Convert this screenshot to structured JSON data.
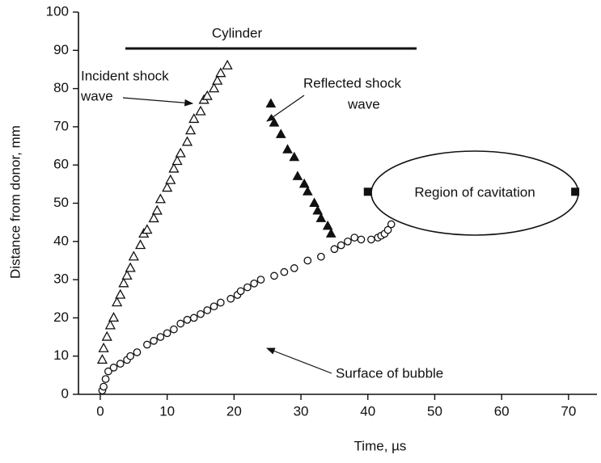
{
  "chart_data": {
    "type": "scatter",
    "x_label": "Time, µs",
    "y_label": "Distance from donor, mm",
    "xlim": [
      -3.26,
      74.25
    ],
    "ylim": [
      0,
      100
    ],
    "xticks": [
      0,
      10,
      20,
      30,
      40,
      50,
      60,
      70
    ],
    "yticks": [
      0,
      10,
      20,
      30,
      40,
      50,
      60,
      70,
      80,
      90,
      100
    ],
    "grid": false,
    "series": [
      {
        "name": "Incident shock wave",
        "marker": "open-triangle",
        "color": "#111111",
        "x": [
          0.3,
          0.5,
          1,
          1.5,
          2,
          2.5,
          3,
          3.5,
          4,
          4.5,
          5,
          6,
          6.5,
          7,
          8,
          8.5,
          9,
          10,
          10.5,
          11,
          11.5,
          12,
          13,
          13.5,
          14,
          15,
          15.5,
          16,
          17,
          17.5,
          18,
          19
        ],
        "values": [
          9,
          12,
          15,
          18,
          20,
          24,
          26,
          29,
          31,
          33,
          36,
          39,
          42,
          43,
          46,
          48,
          51,
          54,
          56,
          59,
          61,
          63,
          66,
          69,
          72,
          74,
          77,
          78,
          80,
          82,
          84,
          86
        ]
      },
      {
        "name": "Reflected shock wave",
        "marker": "filled-triangle",
        "color": "#111111",
        "x": [
          25.5,
          26,
          27,
          28,
          29,
          29.5,
          30.5,
          31,
          32,
          32.5,
          33,
          34,
          34.5
        ],
        "values": [
          76,
          71,
          68,
          64,
          62,
          57,
          55,
          53,
          50,
          48,
          46,
          44,
          42
        ]
      },
      {
        "name": "Surface of bubble",
        "marker": "open-circle",
        "color": "#111111",
        "x": [
          0.3,
          0.5,
          0.8,
          1.2,
          2,
          3,
          4,
          4.5,
          5.5,
          7,
          8,
          9,
          10,
          11,
          12,
          13,
          14,
          15,
          16,
          17,
          18,
          19.5,
          20.5,
          21,
          22,
          23,
          24,
          26,
          27.5,
          29,
          31,
          33,
          35,
          36,
          37,
          38,
          39,
          40.5,
          41.5,
          42,
          42.5,
          43,
          43.5
        ],
        "values": [
          1,
          2,
          4,
          6,
          7,
          8,
          9,
          10,
          11,
          13,
          14,
          15,
          16,
          17,
          18.5,
          19.5,
          20,
          21,
          22,
          23,
          24,
          25,
          26,
          27,
          28,
          29,
          30,
          31,
          32,
          33,
          35,
          36,
          38,
          39,
          40,
          41,
          40.5,
          40.5,
          41,
          41.5,
          42,
          43,
          44.5
        ]
      },
      {
        "name": "Region of cavitation",
        "marker": "filled-square",
        "color": "#111111",
        "x": [
          40,
          71
        ],
        "values": [
          53,
          53
        ]
      }
    ],
    "annotations": {
      "cylinder": "Cylinder",
      "incident": [
        "Incident shock",
        "wave"
      ],
      "reflected": [
        "Reflected shock",
        "wave"
      ],
      "cavitation": "Region of cavitation",
      "bubble": "Surface of bubble"
    }
  }
}
